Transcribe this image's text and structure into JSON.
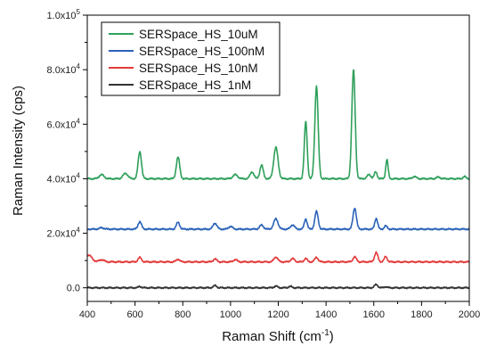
{
  "chart_data": {
    "type": "line",
    "xlabel": "Raman Shift (cm",
    "xlabel_sup": "-1",
    "xlabel_suffix": ")",
    "ylabel": "Raman Intensity (cps)",
    "xlim": [
      400,
      2000
    ],
    "ylim": [
      -5000,
      100000
    ],
    "grid": false,
    "legend_position": "top-left",
    "x_ticks": [
      400,
      600,
      800,
      1000,
      1200,
      1400,
      1600,
      1800,
      2000
    ],
    "x_tick_labels": [
      "400",
      "600",
      "800",
      "1000",
      "1200",
      "1400",
      "1600",
      "1800",
      "2000"
    ],
    "y_ticks": [
      0,
      20000,
      40000,
      60000,
      80000,
      100000
    ],
    "y_tick_mantissa": [
      "0.0",
      "2.0x10",
      "4.0x10",
      "6.0x10",
      "8.0x10",
      "1.0x10"
    ],
    "y_tick_exponent": [
      "",
      "4",
      "4",
      "4",
      "4",
      "5"
    ],
    "series": [
      {
        "name": "SERSpace_HS_10uM",
        "color": "#2ea05a",
        "baseline": 40000,
        "peaks": [
          [
            460,
            1500,
            10
          ],
          [
            560,
            2000,
            10
          ],
          [
            620,
            10000,
            7
          ],
          [
            780,
            8000,
            7
          ],
          [
            1020,
            1500,
            10
          ],
          [
            1090,
            2500,
            8
          ],
          [
            1130,
            5000,
            7
          ],
          [
            1190,
            11500,
            9
          ],
          [
            1315,
            21000,
            6
          ],
          [
            1360,
            34000,
            7
          ],
          [
            1515,
            40000,
            7
          ],
          [
            1580,
            1500,
            8
          ],
          [
            1608,
            2500,
            6
          ],
          [
            1655,
            7000,
            5
          ],
          [
            1770,
            800,
            8
          ],
          [
            1870,
            600,
            8
          ],
          [
            1980,
            800,
            6
          ]
        ]
      },
      {
        "name": "SERSpace_HS_100nM",
        "color": "#2a62b8",
        "baseline": 21500,
        "peaks": [
          [
            460,
            500,
            10
          ],
          [
            620,
            2800,
            7
          ],
          [
            780,
            2500,
            7
          ],
          [
            935,
            2200,
            8
          ],
          [
            1000,
            1000,
            8
          ],
          [
            1130,
            1500,
            8
          ],
          [
            1190,
            3800,
            9
          ],
          [
            1260,
            1600,
            8
          ],
          [
            1315,
            3800,
            6
          ],
          [
            1360,
            6500,
            7
          ],
          [
            1520,
            7800,
            7
          ],
          [
            1610,
            4000,
            6
          ],
          [
            1650,
            1200,
            6
          ]
        ]
      },
      {
        "name": "SERSpace_HS_10nM",
        "color": "#e23a3a",
        "baseline": 9500,
        "peaks": [
          [
            405,
            2500,
            14
          ],
          [
            460,
            800,
            10
          ],
          [
            620,
            1600,
            7
          ],
          [
            780,
            1000,
            7
          ],
          [
            935,
            1100,
            7
          ],
          [
            1020,
            900,
            7
          ],
          [
            1190,
            1800,
            8
          ],
          [
            1260,
            1200,
            8
          ],
          [
            1315,
            1300,
            6
          ],
          [
            1360,
            1700,
            7
          ],
          [
            1520,
            1900,
            7
          ],
          [
            1610,
            3400,
            7
          ],
          [
            1650,
            2000,
            6
          ]
        ]
      },
      {
        "name": "SERSpace_HS_1nM",
        "color": "#333333",
        "baseline": 0,
        "peaks": [
          [
            620,
            500,
            6
          ],
          [
            935,
            800,
            7
          ],
          [
            1190,
            600,
            7
          ],
          [
            1250,
            500,
            7
          ],
          [
            1610,
            1200,
            7
          ],
          [
            1650,
            400,
            6
          ]
        ]
      }
    ]
  }
}
